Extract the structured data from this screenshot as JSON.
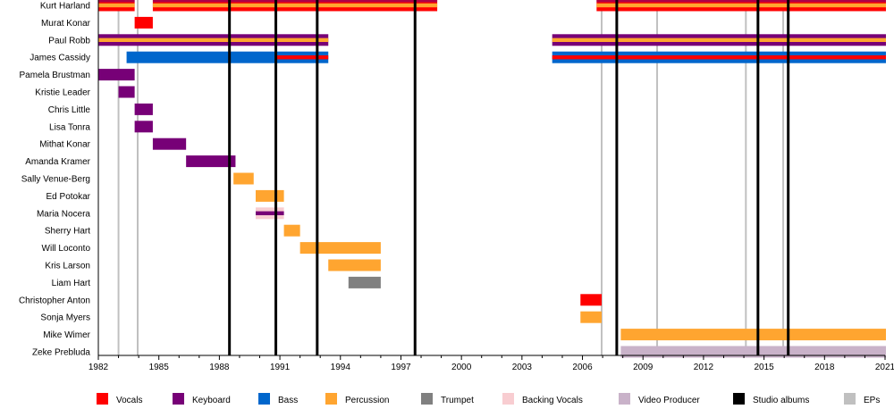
{
  "chart_data": {
    "type": "timeline",
    "xlim": [
      1982,
      2021.1
    ],
    "x_ticks": [
      1982,
      1985,
      1988,
      1991,
      1994,
      1997,
      2000,
      2003,
      2006,
      2009,
      2012,
      2015,
      2018,
      2021
    ],
    "colors": {
      "Vocals": "#ff0000",
      "Keyboard": "#770077",
      "Bass": "#0066cc",
      "Percussion": "#ffa530",
      "Trumpet": "#808080",
      "Backing Vocals": "#f8cdd1",
      "Video Producer": "#c9b2c9",
      "Studio albums": "#000000",
      "EPs": "#c0c0c0"
    },
    "legend": [
      "Vocals",
      "Keyboard",
      "Bass",
      "Percussion",
      "Trumpet",
      "Backing Vocals",
      "Video Producer",
      "Studio albums",
      "EPs"
    ],
    "legend_placement": "bottom",
    "members": [
      {
        "name": "Kurt Harland",
        "periods": [
          {
            "start": 1982,
            "end": 1983.8,
            "role": "Vocals",
            "top": "Keyboard",
            "stripe": "Percussion"
          },
          {
            "start": 1984.7,
            "end": 1998.8,
            "role": "Vocals",
            "top": "Keyboard",
            "stripe": "Percussion"
          },
          {
            "start": 2006.7,
            "end": 2021.1,
            "role": "Vocals",
            "top": "Keyboard",
            "stripe": "Percussion"
          }
        ]
      },
      {
        "name": "Murat Konar",
        "periods": [
          {
            "start": 1983.8,
            "end": 1984.7,
            "role": "Vocals"
          }
        ]
      },
      {
        "name": "Paul Robb",
        "periods": [
          {
            "start": 1982,
            "end": 1993.4,
            "role": "Keyboard",
            "stripe": "Percussion"
          },
          {
            "start": 2004.5,
            "end": 2021.1,
            "role": "Keyboard",
            "stripe": "Percussion"
          }
        ]
      },
      {
        "name": "James Cassidy",
        "periods": [
          {
            "start": 1983.4,
            "end": 1990.75,
            "role": "Bass"
          },
          {
            "start": 1990.75,
            "end": 1993.4,
            "role": "Bass",
            "stripe": "Vocals"
          },
          {
            "start": 2004.5,
            "end": 2021.1,
            "role": "Bass",
            "stripe": "Vocals"
          }
        ]
      },
      {
        "name": "Pamela Brustman",
        "periods": [
          {
            "start": 1982,
            "end": 1983.8,
            "role": "Keyboard"
          }
        ]
      },
      {
        "name": "Kristie Leader",
        "periods": [
          {
            "start": 1983,
            "end": 1983.8,
            "role": "Keyboard"
          }
        ]
      },
      {
        "name": "Chris Little",
        "periods": [
          {
            "start": 1983.8,
            "end": 1984.7,
            "role": "Keyboard"
          }
        ]
      },
      {
        "name": "Lisa Tonra",
        "periods": [
          {
            "start": 1983.8,
            "end": 1984.7,
            "role": "Keyboard"
          }
        ]
      },
      {
        "name": "Mithat Konar",
        "periods": [
          {
            "start": 1984.7,
            "end": 1986.35,
            "role": "Keyboard"
          }
        ]
      },
      {
        "name": "Amanda Kramer",
        "periods": [
          {
            "start": 1986.35,
            "end": 1988.8,
            "role": "Keyboard"
          }
        ]
      },
      {
        "name": "Sally Venue-Berg",
        "periods": [
          {
            "start": 1988.7,
            "end": 1989.7,
            "role": "Percussion"
          }
        ]
      },
      {
        "name": "Ed Potokar",
        "periods": [
          {
            "start": 1989.8,
            "end": 1991.2,
            "role": "Percussion"
          }
        ]
      },
      {
        "name": "Maria Nocera",
        "periods": [
          {
            "start": 1989.8,
            "end": 1991.2,
            "role": "Backing Vocals",
            "stripe": "Keyboard"
          }
        ]
      },
      {
        "name": "Sherry Hart",
        "periods": [
          {
            "start": 1991.2,
            "end": 1992,
            "role": "Percussion"
          }
        ]
      },
      {
        "name": "Will Loconto",
        "periods": [
          {
            "start": 1992,
            "end": 1996,
            "role": "Percussion"
          }
        ]
      },
      {
        "name": "Kris Larson",
        "periods": [
          {
            "start": 1993.4,
            "end": 1996,
            "role": "Percussion"
          }
        ]
      },
      {
        "name": "Liam Hart",
        "periods": [
          {
            "start": 1994.4,
            "end": 1996,
            "role": "Trumpet"
          }
        ]
      },
      {
        "name": "Christopher Anton",
        "periods": [
          {
            "start": 2005.9,
            "end": 2006.95,
            "role": "Vocals"
          }
        ]
      },
      {
        "name": "Sonja Myers",
        "periods": [
          {
            "start": 2005.9,
            "end": 2006.95,
            "role": "Percussion"
          }
        ]
      },
      {
        "name": "Mike Wimer",
        "periods": [
          {
            "start": 2007.9,
            "end": 2021.1,
            "role": "Percussion"
          }
        ]
      },
      {
        "name": "Zeke Prebluda",
        "periods": [
          {
            "start": 2007.9,
            "end": 2021.1,
            "role": "Video Producer"
          }
        ]
      }
    ],
    "events": [
      {
        "year": 1983,
        "type": "EPs"
      },
      {
        "year": 1983.95,
        "type": "EPs"
      },
      {
        "year": 2006.95,
        "type": "EPs"
      },
      {
        "year": 2009.7,
        "type": "EPs"
      },
      {
        "year": 2014.1,
        "type": "EPs"
      },
      {
        "year": 2015.95,
        "type": "EPs"
      },
      {
        "year": 1988.5,
        "type": "Studio albums"
      },
      {
        "year": 1990.8,
        "type": "Studio albums"
      },
      {
        "year": 1992.85,
        "type": "Studio albums"
      },
      {
        "year": 1997.7,
        "type": "Studio albums"
      },
      {
        "year": 2007.7,
        "type": "Studio albums"
      },
      {
        "year": 2014.7,
        "type": "Studio albums"
      },
      {
        "year": 2016.2,
        "type": "Studio albums"
      }
    ]
  }
}
